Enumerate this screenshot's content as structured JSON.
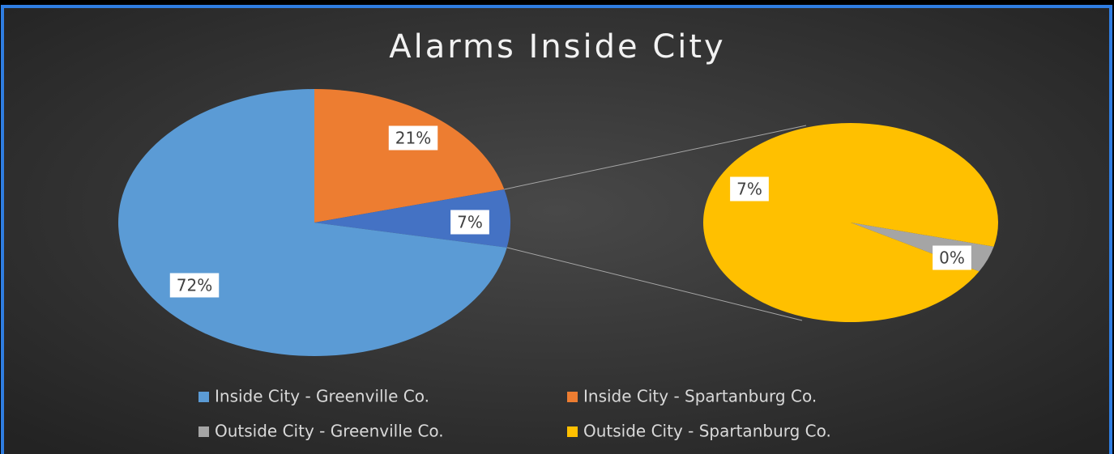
{
  "chart_data": {
    "type": "pie-of-pie",
    "title": "Alarms Inside City",
    "categories": [
      "Inside City - Greenville Co.",
      "Inside City - Spartanburg Co.",
      "Outside City - Greenville Co.",
      "Outside City - Spartanburg Co."
    ],
    "values": [
      72,
      21,
      0.3,
      6.7
    ],
    "value_labels": [
      "72%",
      "21%",
      "0%",
      "7%"
    ],
    "colors": [
      "#5b9bd5",
      "#ed7d31",
      "#a5a5a5",
      "#ffc000"
    ],
    "other_value": 7,
    "other_value_label": "7%",
    "other_color": "#4472c4"
  }
}
